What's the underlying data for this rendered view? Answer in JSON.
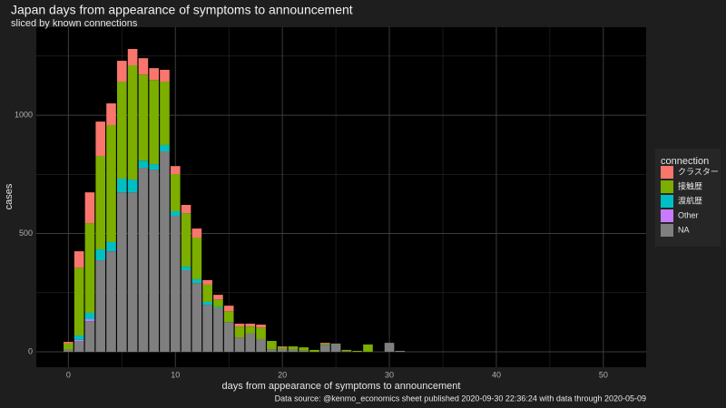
{
  "chart_data": {
    "type": "bar",
    "stacked": true,
    "title": "Japan days from appearance of symptoms to announcement",
    "subtitle": "sliced by known connections",
    "x_label": "days from appearance of symptoms to announcement",
    "y_label": "cases",
    "caption": "Data source: @kenmo_economics sheet published 2020-09-30 22:36:24 with data through 2020-05-09",
    "legend_title": "connection",
    "legend_position": "right",
    "grid": true,
    "x": [
      0,
      1,
      2,
      3,
      4,
      5,
      6,
      7,
      8,
      9,
      10,
      11,
      12,
      13,
      14,
      15,
      16,
      17,
      18,
      19,
      20,
      21,
      22,
      23,
      24,
      25,
      26,
      27,
      28,
      29,
      30,
      31
    ],
    "xlim": [
      -3,
      54
    ],
    "xticks": [
      0,
      10,
      20,
      30,
      40,
      50
    ],
    "xminor": [
      5,
      15,
      25,
      35,
      45
    ],
    "ylim": [
      -65,
      1372
    ],
    "yticks": [
      0,
      500,
      1000
    ],
    "yminor": [
      250,
      750,
      1250
    ],
    "series": [
      {
        "name": "クラスター",
        "color": "#F8766D",
        "values": [
          7,
          69,
          130,
          145,
          92,
          88,
          69,
          69,
          50,
          50,
          34,
          35,
          38,
          19,
          19,
          23,
          12,
          12,
          12,
          0,
          3,
          0,
          0,
          0,
          3,
          0,
          0,
          0,
          0,
          0,
          0,
          0
        ]
      },
      {
        "name": "接触歴",
        "color": "#7CAE00",
        "values": [
          25,
          287,
          379,
          395,
          494,
          410,
          483,
          364,
          356,
          268,
          157,
          226,
          176,
          73,
          33,
          46,
          46,
          30,
          49,
          35,
          8,
          13,
          14,
          8,
          5,
          0,
          5,
          4,
          31,
          0,
          0,
          0
        ]
      },
      {
        "name": "渡航歴",
        "color": "#00BFC4",
        "values": [
          0,
          18,
          27,
          46,
          39,
          58,
          54,
          30,
          23,
          27,
          19,
          15,
          16,
          12,
          5,
          0,
          0,
          0,
          0,
          0,
          0,
          0,
          0,
          0,
          0,
          0,
          0,
          0,
          0,
          0,
          0,
          0
        ]
      },
      {
        "name": "Other",
        "color": "#C77CFF",
        "values": [
          0,
          5,
          8,
          0,
          0,
          0,
          0,
          0,
          0,
          0,
          0,
          0,
          0,
          0,
          0,
          0,
          0,
          0,
          0,
          0,
          0,
          0,
          0,
          0,
          0,
          0,
          0,
          0,
          0,
          0,
          0,
          0
        ]
      },
      {
        "name": "NA",
        "color": "#7F7F7F",
        "values": [
          10,
          46,
          130,
          387,
          425,
          674,
          674,
          778,
          770,
          847,
          575,
          345,
          291,
          199,
          184,
          126,
          61,
          77,
          54,
          11,
          12,
          10,
          5,
          0,
          30,
          35,
          3,
          0,
          0,
          0,
          38,
          4
        ]
      }
    ]
  }
}
